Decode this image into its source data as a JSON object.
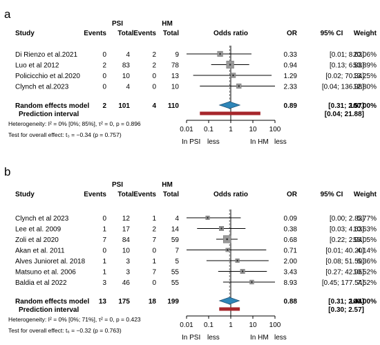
{
  "chart_data": [
    {
      "type": "forest",
      "panel_label": "a",
      "group_headers": [
        "PSI",
        "HM"
      ],
      "columns": {
        "study": "Study",
        "events1": "Events",
        "total1": "Total",
        "events2": "Events",
        "total2": "Total",
        "plot": "Odds ratio",
        "or": "OR",
        "ci": "95% CI",
        "weight": "Weight"
      },
      "axis_ticks": [
        "0.01",
        "0.1",
        "1",
        "10",
        "100"
      ],
      "xlim": [
        0.01,
        100
      ],
      "log_scale": true,
      "axis_left_label": "In PSI",
      "axis_left_word": "less",
      "axis_right_label": "In HM",
      "axis_right_word": "less",
      "studies": [
        {
          "name": "Di Rienzo et al.2021",
          "e1": "0",
          "t1": "4",
          "e2": "2",
          "t2": "9",
          "or": 0.33,
          "lo": 0.01,
          "hi": 8.63,
          "or_text": "0.33",
          "ci_text": "[0.01;   8.63]",
          "weight": 20.06,
          "weight_text": "20.06%"
        },
        {
          "name": "Luo et al 2012",
          "e1": "2",
          "t1": "83",
          "e2": "2",
          "t2": "78",
          "or": 0.94,
          "lo": 0.13,
          "hi": 6.83,
          "or_text": "0.94",
          "ci_text": "[0.13;   6.83]",
          "weight": 53.89,
          "weight_text": "53.89%"
        },
        {
          "name": "Policicchio et al.2020",
          "e1": "0",
          "t1": "10",
          "e2": "0",
          "t2": "13",
          "or": 1.29,
          "lo": 0.02,
          "hi": 70.34,
          "or_text": "1.29",
          "ci_text": "[0.02;  70.34]",
          "weight": 13.25,
          "weight_text": "13.25%"
        },
        {
          "name": "Clynch et al.2023",
          "e1": "0",
          "t1": "4",
          "e2": "0",
          "t2": "10",
          "or": 2.33,
          "lo": 0.04,
          "hi": 136.98,
          "or_text": "2.33",
          "ci_text": "[0.04; 136.98]",
          "weight": 12.8,
          "weight_text": "12.80%"
        }
      ],
      "summary": {
        "label": "Random effects model",
        "e1": "2",
        "t1": "101",
        "e2": "4",
        "t2": "110",
        "or": 0.89,
        "lo": 0.31,
        "hi": 2.57,
        "or_text": "0.89",
        "ci_text": "[0.31;   2.57]",
        "weight_text": "100.00%"
      },
      "prediction": {
        "label": "Prediction interval",
        "lo": 0.04,
        "hi": 21.88,
        "ci_text": "[0.04;  21.88]"
      },
      "heterogeneity": "Heterogeneity: I² = 0% [0%; 85%], τ² = 0, p = 0.896",
      "overall_test": "Test for overall effect: t₃ = −0.34 (p = 0.757)"
    },
    {
      "type": "forest",
      "panel_label": "b",
      "group_headers": [
        "PSI",
        "HM"
      ],
      "columns": {
        "study": "Study",
        "events1": "Events",
        "total1": "Total",
        "events2": "Events",
        "total2": "Total",
        "plot": "Odds ratio",
        "or": "OR",
        "ci": "95% CI",
        "weight": "Weight"
      },
      "axis_ticks": [
        "0.01",
        "0.1",
        "1",
        "10",
        "100"
      ],
      "xlim": [
        0.01,
        100
      ],
      "log_scale": true,
      "axis_left_label": "In PSI",
      "axis_left_word": "less",
      "axis_right_label": "In HM",
      "axis_right_word": "less",
      "studies": [
        {
          "name": "Clynch et al 2023",
          "e1": "0",
          "t1": "12",
          "e2": "1",
          "t2": "4",
          "or": 0.09,
          "lo": 0.0,
          "hi": 2.83,
          "or_text": "0.09",
          "ci_text": "[0.00;   2.83]",
          "weight": 5.77,
          "weight_text": "5.77%"
        },
        {
          "name": "Lee et al. 2009",
          "e1": "1",
          "t1": "17",
          "e2": "2",
          "t2": "14",
          "or": 0.38,
          "lo": 0.03,
          "hi": 4.63,
          "or_text": "0.38",
          "ci_text": "[0.03;   4.63]",
          "weight": 10.63,
          "weight_text": "10.63%"
        },
        {
          "name": "Zoli et al 2020",
          "e1": "7",
          "t1": "84",
          "e2": "7",
          "t2": "59",
          "or": 0.68,
          "lo": 0.22,
          "hi": 2.04,
          "or_text": "0.68",
          "ci_text": "[0.22;   2.04]",
          "weight": 55.05,
          "weight_text": "55.05%"
        },
        {
          "name": "Akan et al. 2011",
          "e1": "0",
          "t1": "10",
          "e2": "0",
          "t2": "7",
          "or": 0.71,
          "lo": 0.01,
          "hi": 40.2,
          "or_text": "0.71",
          "ci_text": "[0.01;  40.20]",
          "weight": 4.14,
          "weight_text": "4.14%"
        },
        {
          "name": "Alves Junioret al. 2018",
          "e1": "1",
          "t1": "3",
          "e2": "1",
          "t2": "5",
          "or": 2.0,
          "lo": 0.08,
          "hi": 51.59,
          "or_text": "2.00",
          "ci_text": "[0.08;  51.59]",
          "weight": 6.36,
          "weight_text": "6.36%"
        },
        {
          "name": "Matsuno et al. 2006",
          "e1": "1",
          "t1": "3",
          "e2": "7",
          "t2": "55",
          "or": 3.43,
          "lo": 0.27,
          "hi": 42.96,
          "or_text": "3.43",
          "ci_text": "[0.27;  42.96]",
          "weight": 10.52,
          "weight_text": "10.52%"
        },
        {
          "name": "Baldia et al 2022",
          "e1": "3",
          "t1": "46",
          "e2": "0",
          "t2": "55",
          "or": 8.93,
          "lo": 0.45,
          "hi": 177.54,
          "or_text": "8.93",
          "ci_text": "[0.45; 177.54]",
          "weight": 7.52,
          "weight_text": "7.52%"
        }
      ],
      "summary": {
        "label": "Random effects model",
        "e1": "13",
        "t1": "175",
        "e2": "18",
        "t2": "199",
        "or": 0.88,
        "lo": 0.31,
        "hi": 2.44,
        "or_text": "0.88",
        "ci_text": "[0.31;   2.44]",
        "weight_text": "100.00%"
      },
      "prediction": {
        "label": "Prediction interval",
        "lo": 0.3,
        "hi": 2.57,
        "ci_text": "[0.30;   2.57]"
      },
      "heterogeneity": "Heterogeneity: I² = 0% [0%; 71%], τ² = 0, p = 0.423",
      "overall_test": "Test for overall effect: t₆ = −0.32 (p = 0.763)"
    }
  ],
  "colors": {
    "square": "#9a9a9a",
    "diamond": "#2e86b8",
    "diamond_stroke": "#1c4f73",
    "prediction": "#a6262b",
    "text": "#000000"
  }
}
